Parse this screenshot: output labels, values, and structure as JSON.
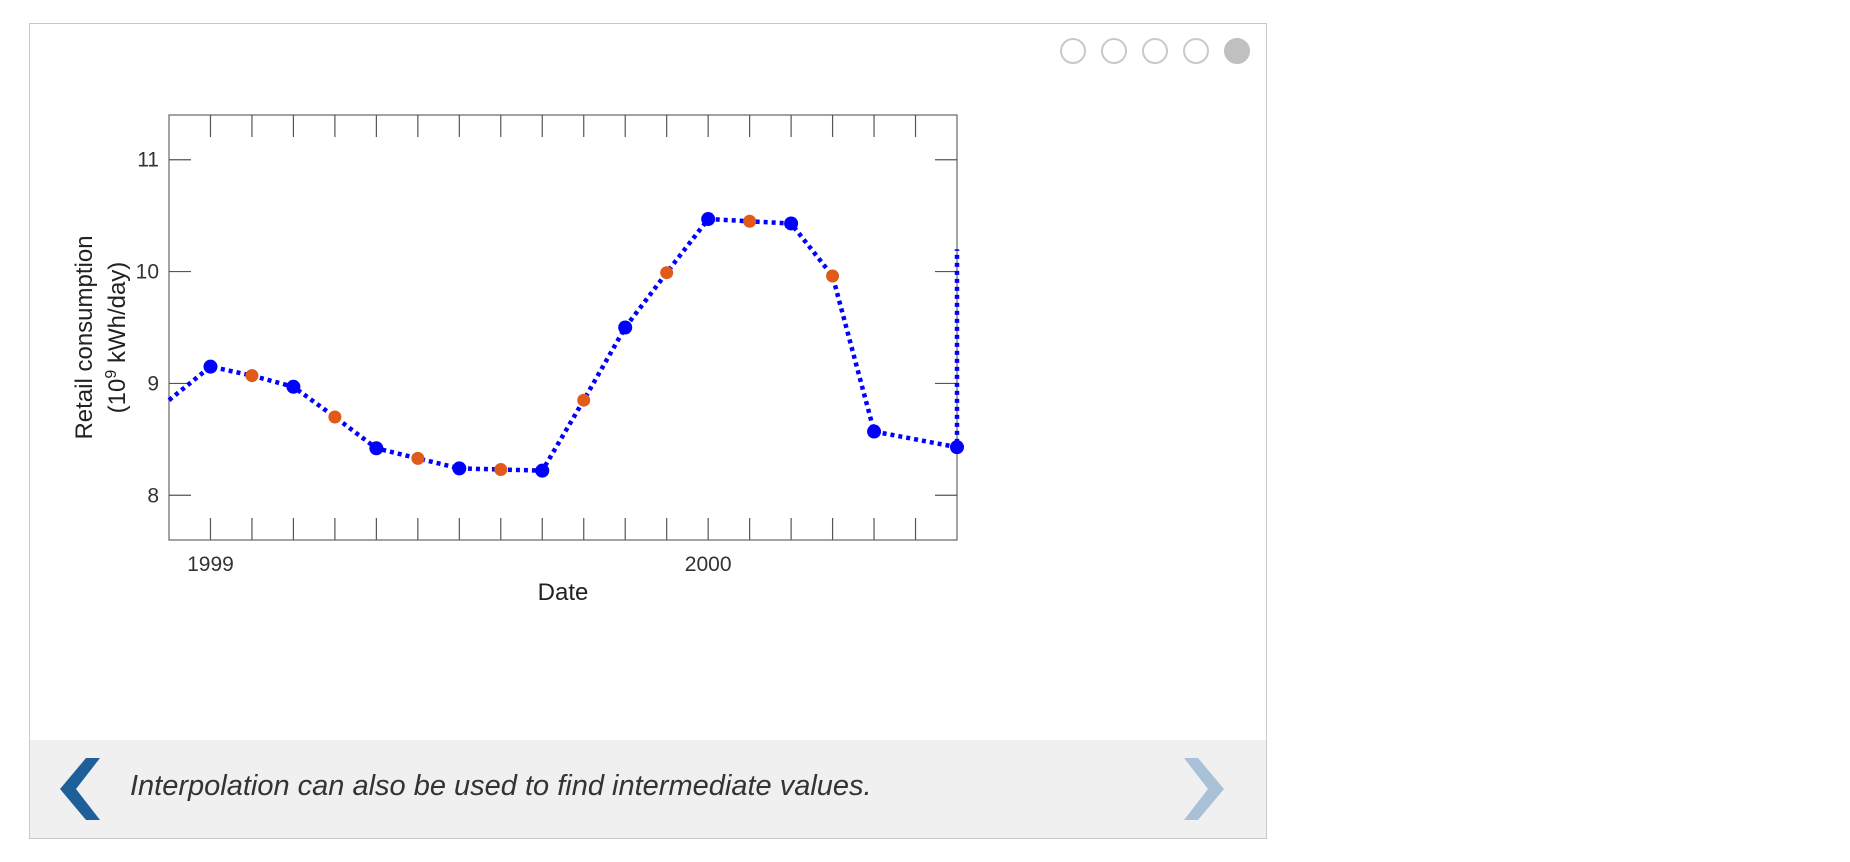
{
  "pager": {
    "dots": [
      {
        "label": "slide-1",
        "active": false
      },
      {
        "label": "slide-2",
        "active": false
      },
      {
        "label": "slide-3",
        "active": false
      },
      {
        "label": "slide-4",
        "active": false
      },
      {
        "label": "slide-5",
        "active": true
      }
    ]
  },
  "caption": {
    "text": "Interpolation can also be used to find intermediate values.",
    "prev_icon": "chevron-left-icon",
    "next_icon": "chevron-right-icon"
  },
  "colors": {
    "line": "#0000ff",
    "known_point": "#0000ff",
    "interpolated_point": "#e05a1a",
    "prev_arrow": "#1f5f99",
    "next_arrow": "#a9c1d6"
  },
  "chart_data": {
    "type": "line",
    "xlabel": "Date",
    "ylabel_line1": "Retail consumption",
    "ylabel_base": "(10",
    "ylabel_exp": "9",
    "ylabel_rest": " kWh/day)",
    "ylim": [
      7.6,
      11.4
    ],
    "xlim": [
      "1998-12",
      "2000-07"
    ],
    "x_tick_labels": [
      {
        "date": "1999-01",
        "label": "1999"
      },
      {
        "date": "2000-01",
        "label": "2000"
      }
    ],
    "y_ticks": [
      8,
      9,
      10,
      11
    ],
    "grid": false,
    "series": [
      {
        "values": [
          {
            "date": "1999-01",
            "y": 9.15
          },
          {
            "date": "1999-03",
            "y": 8.97
          },
          {
            "date": "1999-05",
            "y": 8.42
          },
          {
            "date": "1999-07",
            "y": 8.24
          },
          {
            "date": "1999-09",
            "y": 8.22
          },
          {
            "date": "1999-11",
            "y": 9.5
          },
          {
            "date": "2000-01",
            "y": 10.47
          },
          {
            "date": "2000-03",
            "y": 10.43
          },
          {
            "date": "2000-05",
            "y": 8.57
          },
          {
            "date": "2000-07",
            "y": 8.43
          }
        ]
      },
      {
        "values": [
          {
            "date": "1999-02",
            "y": 9.07
          },
          {
            "date": "1999-04",
            "y": 8.7
          },
          {
            "date": "1999-06",
            "y": 8.33
          },
          {
            "date": "1999-08",
            "y": 8.23
          },
          {
            "date": "1999-10",
            "y": 8.85
          },
          {
            "date": "1999-12",
            "y": 9.99
          },
          {
            "date": "2000-02",
            "y": 10.45
          },
          {
            "date": "2000-04",
            "y": 9.96
          }
        ]
      }
    ]
  }
}
